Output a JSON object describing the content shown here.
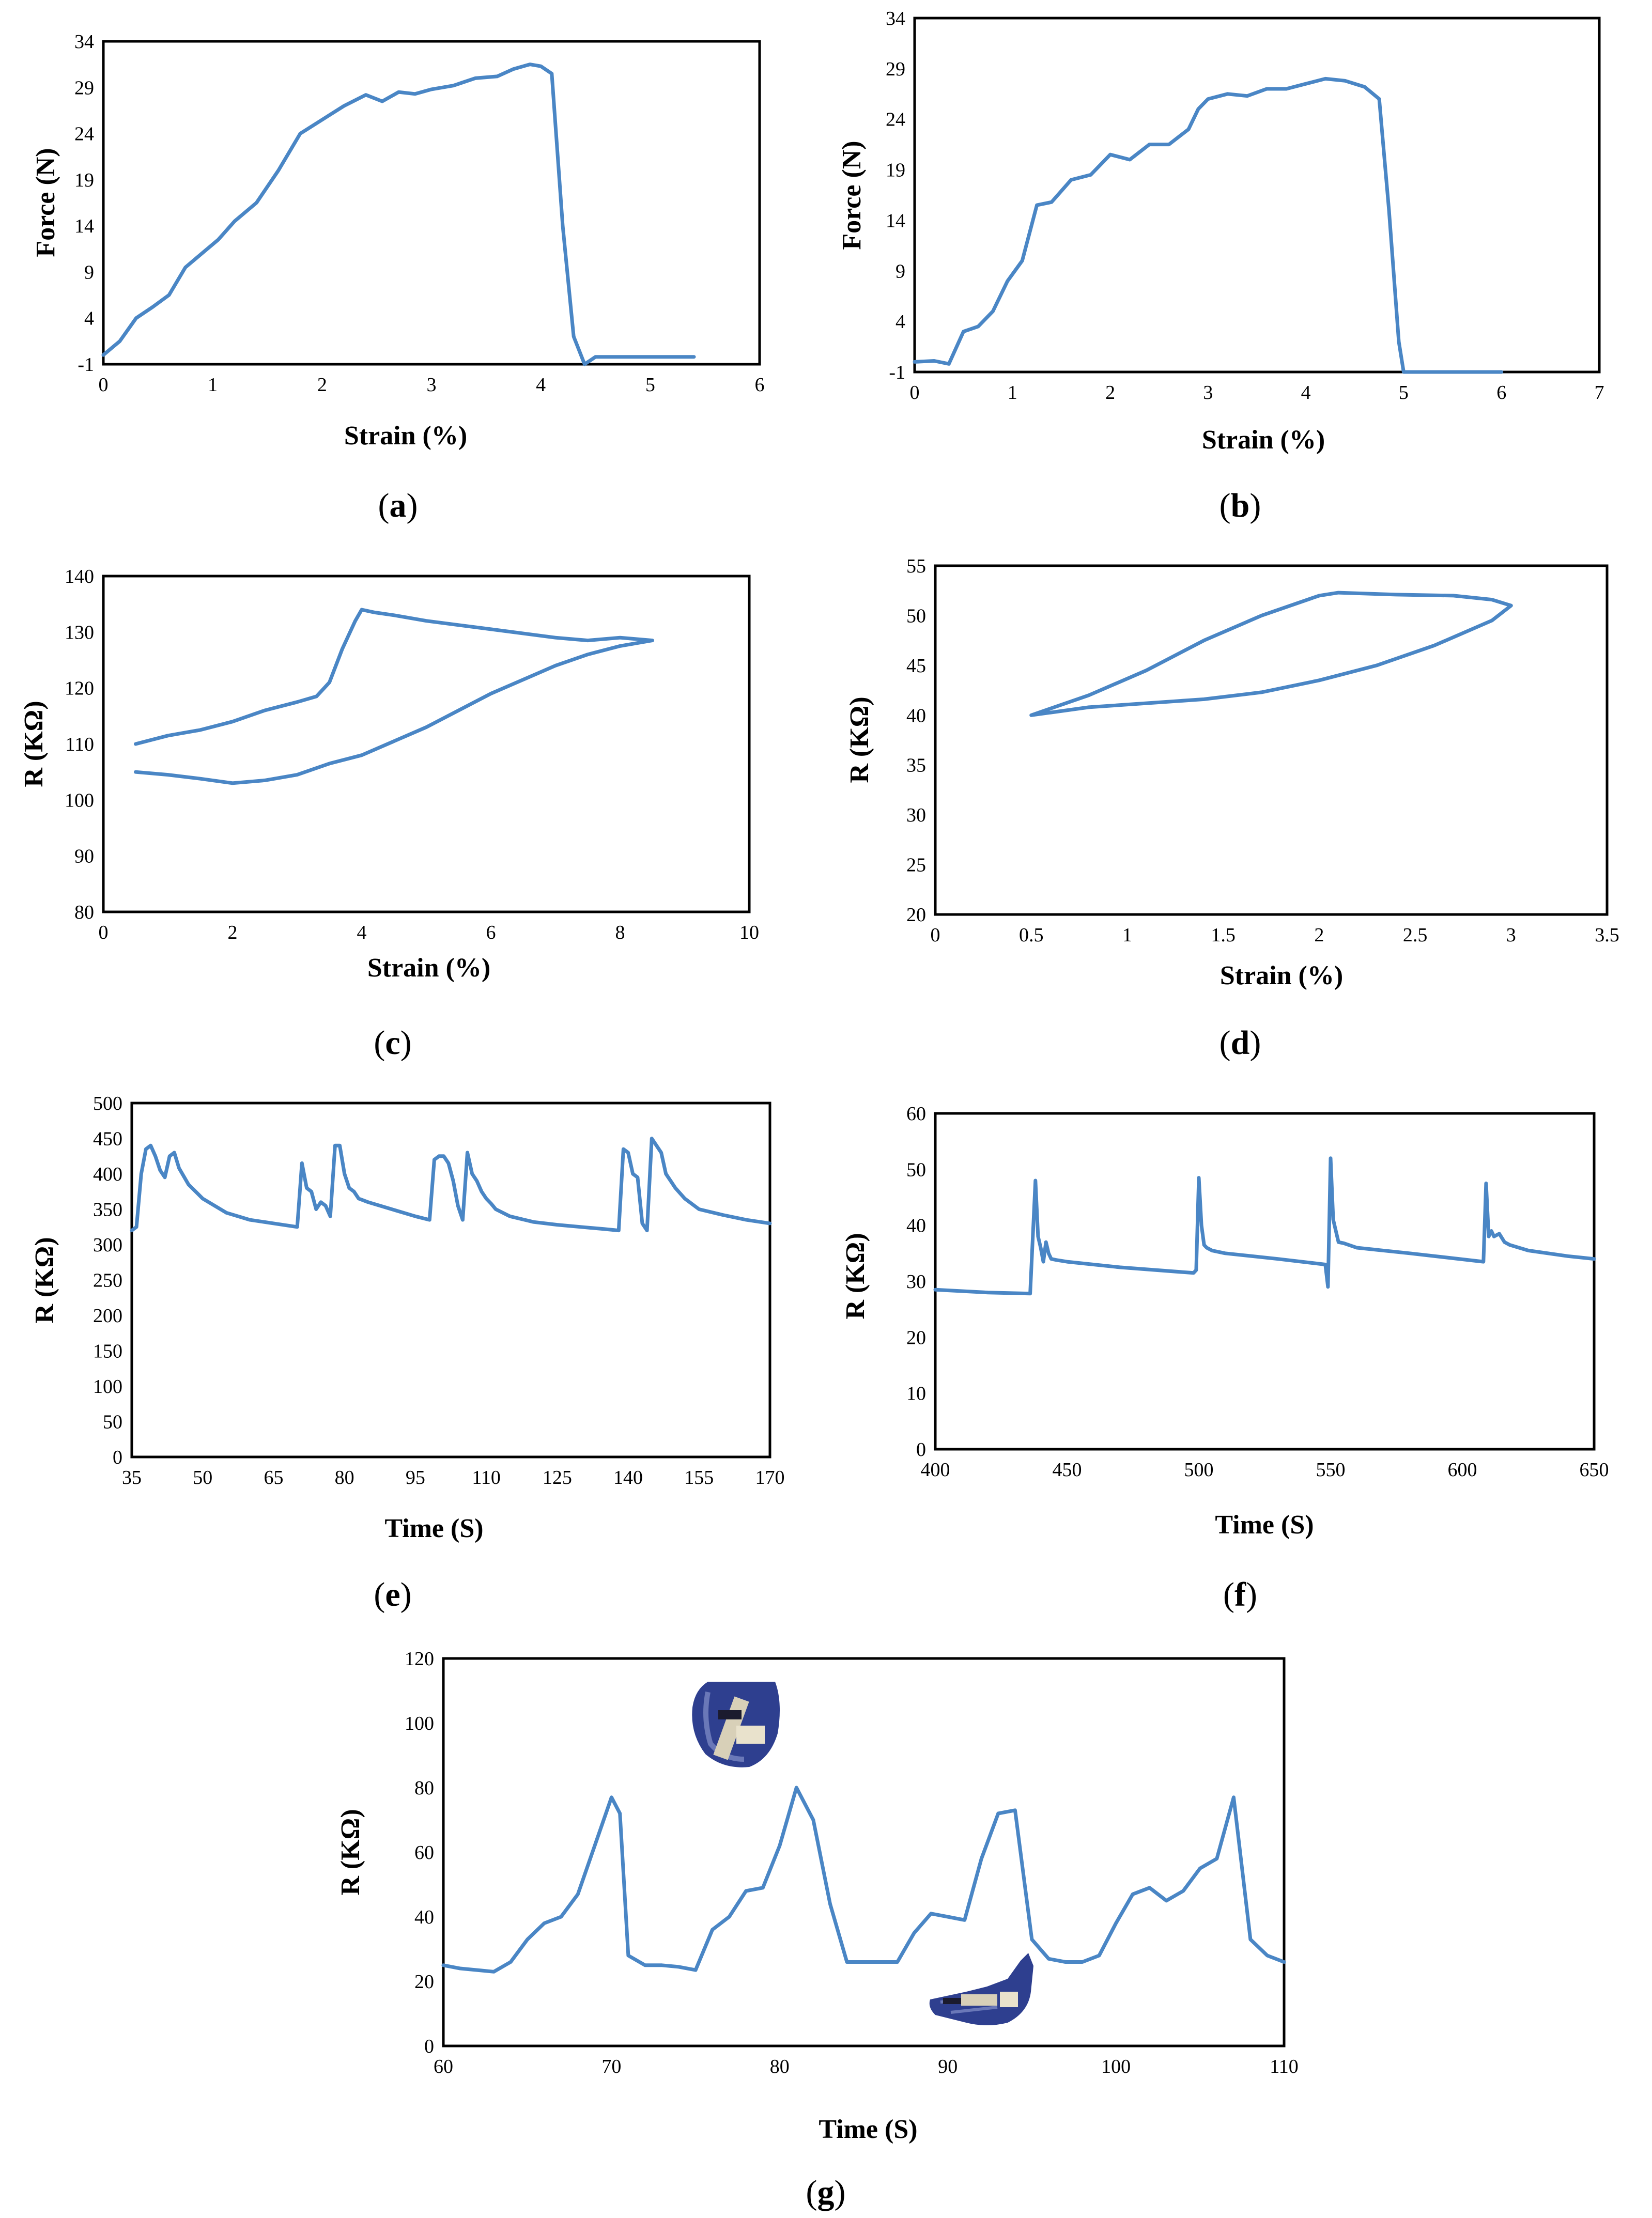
{
  "colors": {
    "line": "#4a86c5",
    "axis": "#000000",
    "glove": "#2e3f8f"
  },
  "chart_data": [
    {
      "id": "a",
      "type": "line",
      "caption": "a",
      "xlabel": "Strain (%)",
      "ylabel": "Force (N)",
      "xlim": [
        0,
        6
      ],
      "ylim": [
        -1,
        34
      ],
      "xticks": [
        0,
        1,
        2,
        3,
        4,
        5,
        6
      ],
      "yticks": [
        -1,
        4,
        9,
        14,
        19,
        24,
        29,
        34
      ],
      "grid": false,
      "x": [
        0,
        0.15,
        0.3,
        0.45,
        0.6,
        0.75,
        0.9,
        1.05,
        1.2,
        1.4,
        1.6,
        1.8,
        2.0,
        2.2,
        2.4,
        2.55,
        2.7,
        2.85,
        3.0,
        3.2,
        3.4,
        3.6,
        3.75,
        3.9,
        4.0,
        4.1,
        4.2,
        4.3,
        4.4,
        4.5,
        5.4
      ],
      "y": [
        0,
        1.5,
        4,
        5.2,
        6.5,
        9.5,
        11,
        12.5,
        14.5,
        16.5,
        20,
        24,
        25.5,
        27,
        28.2,
        27.5,
        28.5,
        28.3,
        28.8,
        29.2,
        30,
        30.2,
        31,
        31.5,
        31.3,
        30.5,
        14,
        2,
        -1,
        -0.2,
        -0.2
      ]
    },
    {
      "id": "b",
      "type": "line",
      "caption": "b",
      "xlabel": "Strain (%)",
      "ylabel": "Force (N)",
      "xlim": [
        0,
        7
      ],
      "ylim": [
        -1,
        34
      ],
      "xticks": [
        0,
        1,
        2,
        3,
        4,
        5,
        6,
        7
      ],
      "yticks": [
        -1,
        4,
        9,
        14,
        19,
        24,
        29,
        34
      ],
      "grid": false,
      "x": [
        0,
        0.2,
        0.35,
        0.5,
        0.65,
        0.8,
        0.95,
        1.1,
        1.25,
        1.4,
        1.6,
        1.8,
        2.0,
        2.2,
        2.4,
        2.6,
        2.8,
        2.9,
        3.0,
        3.2,
        3.4,
        3.6,
        3.8,
        4.0,
        4.2,
        4.4,
        4.6,
        4.75,
        4.85,
        4.95,
        5.0,
        5.5,
        6.0
      ],
      "y": [
        0,
        0.1,
        -0.2,
        3,
        3.5,
        5,
        8,
        10,
        15.5,
        15.8,
        18,
        18.5,
        20.5,
        20,
        21.5,
        21.5,
        23,
        25,
        26,
        26.5,
        26.3,
        27,
        27,
        27.5,
        28,
        27.8,
        27.2,
        26,
        15,
        2,
        -1,
        -1,
        -1
      ]
    },
    {
      "id": "c",
      "type": "line",
      "caption": "c",
      "xlabel": "Strain (%)",
      "ylabel": "R (KΩ)",
      "xlim": [
        0,
        10
      ],
      "ylim": [
        80,
        140
      ],
      "xticks": [
        0,
        2,
        4,
        6,
        8,
        10
      ],
      "yticks": [
        80,
        90,
        100,
        110,
        120,
        130,
        140
      ],
      "grid": false,
      "x": [
        0.5,
        1.0,
        1.5,
        2.0,
        2.5,
        3.0,
        3.3,
        3.5,
        3.7,
        3.9,
        4.0,
        4.2,
        4.5,
        5.0,
        6.0,
        7.0,
        7.5,
        8.0,
        8.5,
        8.0,
        7.5,
        7.0,
        6.5,
        6.0,
        5.5,
        5.0,
        4.5,
        4.0,
        3.5,
        3.0,
        2.5,
        2.0,
        1.5,
        1.0,
        0.5
      ],
      "y": [
        110,
        111.5,
        112.5,
        114,
        116,
        117.5,
        118.5,
        121,
        127,
        132,
        134,
        133.5,
        133,
        132,
        130.5,
        129,
        128.5,
        129,
        128.5,
        127.5,
        126,
        124,
        121.5,
        119,
        116,
        113,
        110.5,
        108,
        106.5,
        104.5,
        103.5,
        103,
        103.8,
        104.5,
        105
      ]
    },
    {
      "id": "d",
      "type": "line",
      "caption": "d",
      "xlabel": "Strain (%)",
      "ylabel": "R (KΩ)",
      "xlim": [
        0,
        3.5
      ],
      "ylim": [
        20,
        55
      ],
      "xticks": [
        0,
        0.5,
        1,
        1.5,
        2,
        2.5,
        3,
        3.5
      ],
      "yticks": [
        20,
        25,
        30,
        35,
        40,
        45,
        50,
        55
      ],
      "grid": false,
      "x": [
        0.5,
        0.8,
        1.1,
        1.4,
        1.7,
        2.0,
        2.1,
        2.4,
        2.7,
        2.9,
        3.0,
        2.9,
        2.6,
        2.3,
        2.0,
        1.7,
        1.4,
        1.1,
        0.8,
        0.5
      ],
      "y": [
        40,
        42,
        44.5,
        47.5,
        50,
        52,
        52.3,
        52.1,
        52,
        51.6,
        51,
        49.5,
        47,
        45,
        43.5,
        42.3,
        41.6,
        41.2,
        40.8,
        40
      ]
    },
    {
      "id": "e",
      "type": "line",
      "caption": "e",
      "xlabel": "Time (S)",
      "ylabel": "R (KΩ)",
      "xlim": [
        35,
        170
      ],
      "ylim": [
        0,
        500
      ],
      "xticks": [
        35,
        50,
        65,
        80,
        95,
        110,
        125,
        140,
        155,
        170
      ],
      "yticks": [
        0,
        50,
        100,
        150,
        200,
        250,
        300,
        350,
        400,
        450,
        500
      ],
      "grid": false,
      "x": [
        35,
        36,
        37,
        38,
        39,
        40,
        41,
        42,
        43,
        44,
        45,
        47,
        50,
        55,
        60,
        65,
        70,
        71,
        72,
        73,
        74,
        75,
        76,
        77,
        78,
        79,
        80,
        81,
        82,
        83,
        85,
        90,
        95,
        98,
        99,
        100,
        101,
        102,
        103,
        104,
        105,
        106,
        107,
        108,
        109,
        110,
        111,
        112,
        115,
        120,
        125,
        130,
        135,
        138,
        139,
        140,
        141,
        142,
        143,
        144,
        145,
        146,
        147,
        148,
        149,
        150,
        152,
        155,
        160,
        165,
        170
      ],
      "y": [
        320,
        325,
        400,
        435,
        440,
        425,
        405,
        395,
        425,
        430,
        408,
        385,
        365,
        345,
        335,
        330,
        325,
        415,
        380,
        375,
        350,
        360,
        355,
        340,
        440,
        440,
        400,
        380,
        375,
        365,
        360,
        350,
        340,
        335,
        420,
        425,
        425,
        415,
        390,
        355,
        335,
        430,
        400,
        390,
        375,
        365,
        358,
        350,
        340,
        332,
        328,
        325,
        322,
        320,
        435,
        430,
        400,
        395,
        330,
        320,
        450,
        440,
        430,
        400,
        390,
        380,
        365,
        350,
        342,
        335,
        330
      ]
    },
    {
      "id": "f",
      "type": "line",
      "caption": "f",
      "xlabel": "Time (S)",
      "ylabel": "R (KΩ)",
      "xlim": [
        400,
        650
      ],
      "ylim": [
        0,
        60
      ],
      "xticks": [
        400,
        450,
        500,
        550,
        600,
        650
      ],
      "yticks": [
        0,
        10,
        20,
        30,
        40,
        50,
        60
      ],
      "grid": false,
      "x": [
        400,
        420,
        436,
        438,
        439,
        440,
        441,
        442,
        443,
        444,
        446,
        450,
        470,
        498,
        499,
        500,
        501,
        502,
        503,
        505,
        510,
        530,
        548,
        549,
        550,
        551,
        552,
        553,
        555,
        560,
        580,
        608,
        609,
        610,
        611,
        612,
        614,
        616,
        618,
        625,
        640,
        650
      ],
      "y": [
        28.5,
        28,
        27.8,
        48,
        38,
        36,
        33.5,
        37,
        35,
        34,
        33.8,
        33.5,
        32.5,
        31.5,
        32,
        48.5,
        40,
        36.5,
        36,
        35.5,
        35,
        34,
        33,
        29,
        52,
        41,
        39,
        37,
        36.8,
        36,
        35,
        33.5,
        47.5,
        38,
        39,
        38,
        38.5,
        37,
        36.5,
        35.5,
        34.5,
        34
      ]
    },
    {
      "id": "g",
      "type": "line",
      "caption": "g",
      "xlabel": "Time (S)",
      "ylabel": "R (KΩ)",
      "xlim": [
        60,
        110
      ],
      "ylim": [
        0,
        120
      ],
      "xticks": [
        60,
        70,
        80,
        90,
        100,
        110
      ],
      "yticks": [
        0,
        20,
        40,
        60,
        80,
        100,
        120
      ],
      "grid": false,
      "x": [
        60,
        61,
        62,
        63,
        64,
        65,
        66,
        67,
        68,
        69,
        70,
        70.5,
        71,
        72,
        73,
        74,
        75,
        76,
        77,
        78,
        79,
        80,
        81,
        82,
        83,
        84,
        85,
        86,
        87,
        88,
        89,
        90,
        91,
        92,
        93,
        94,
        95,
        96,
        97,
        98,
        99,
        100,
        101,
        102,
        103,
        104,
        105,
        106,
        107,
        108,
        109,
        110
      ],
      "y": [
        25,
        24,
        23.5,
        23,
        26,
        33,
        38,
        40,
        47,
        62,
        77,
        72,
        28,
        25,
        25,
        24.5,
        23.5,
        36,
        40,
        48,
        49,
        62,
        80,
        70,
        44,
        26,
        26,
        26,
        26,
        35,
        41,
        40,
        39,
        58,
        72,
        73,
        33,
        27,
        26,
        26,
        28,
        38,
        47,
        49,
        45,
        48,
        55,
        58,
        77,
        33,
        28,
        26
      ]
    }
  ]
}
